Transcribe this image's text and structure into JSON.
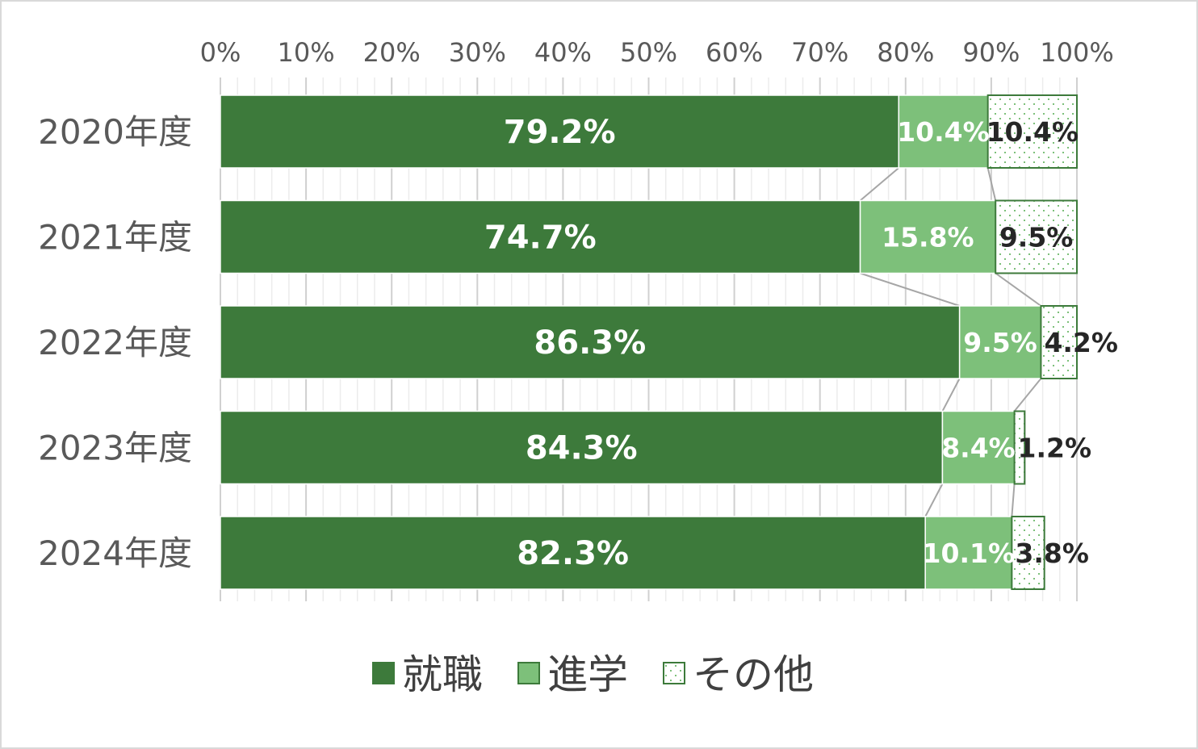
{
  "chart_data": {
    "type": "bar",
    "orientation": "horizontal",
    "stacked": "percent",
    "categories": [
      "2020年度",
      "2021年度",
      "2022年度",
      "2023年度",
      "2024年度"
    ],
    "series": [
      {
        "name": "就職",
        "values": [
          79.2,
          74.7,
          86.3,
          84.3,
          82.3
        ],
        "labels": [
          "79.2%",
          "74.7%",
          "86.3%",
          "84.3%",
          "82.3%"
        ],
        "color": "#3d7a3b",
        "pattern": "solid"
      },
      {
        "name": "進学",
        "values": [
          10.4,
          15.8,
          9.5,
          8.4,
          10.1
        ],
        "labels": [
          "10.4%",
          "15.8%",
          "9.5%",
          "8.4%",
          "10.1%"
        ],
        "color": "#7dc07a",
        "pattern": "solid"
      },
      {
        "name": "その他",
        "values": [
          10.4,
          9.5,
          4.2,
          1.2,
          3.8
        ],
        "labels": [
          "10.4%",
          "9.5%",
          "4.2%",
          "1.2%",
          "3.8%"
        ],
        "color": "#7dc07a",
        "pattern": "dotted"
      }
    ],
    "xaxis": {
      "position": "top",
      "ticks": [
        "0%",
        "10%",
        "20%",
        "30%",
        "40%",
        "50%",
        "60%",
        "70%",
        "80%",
        "90%",
        "100%"
      ],
      "xlim": [
        0,
        100
      ]
    },
    "series_lines": true,
    "grid": true,
    "legend": {
      "position": "bottom"
    }
  },
  "colors": {
    "employment": "#3d7a3b",
    "further_study": "#7dc07a",
    "other_fill": "#ffffff",
    "other_dots": "#7dc07a",
    "grid": "#d9d9d9",
    "series_line": "#a6a6a6",
    "text": "#595959"
  }
}
